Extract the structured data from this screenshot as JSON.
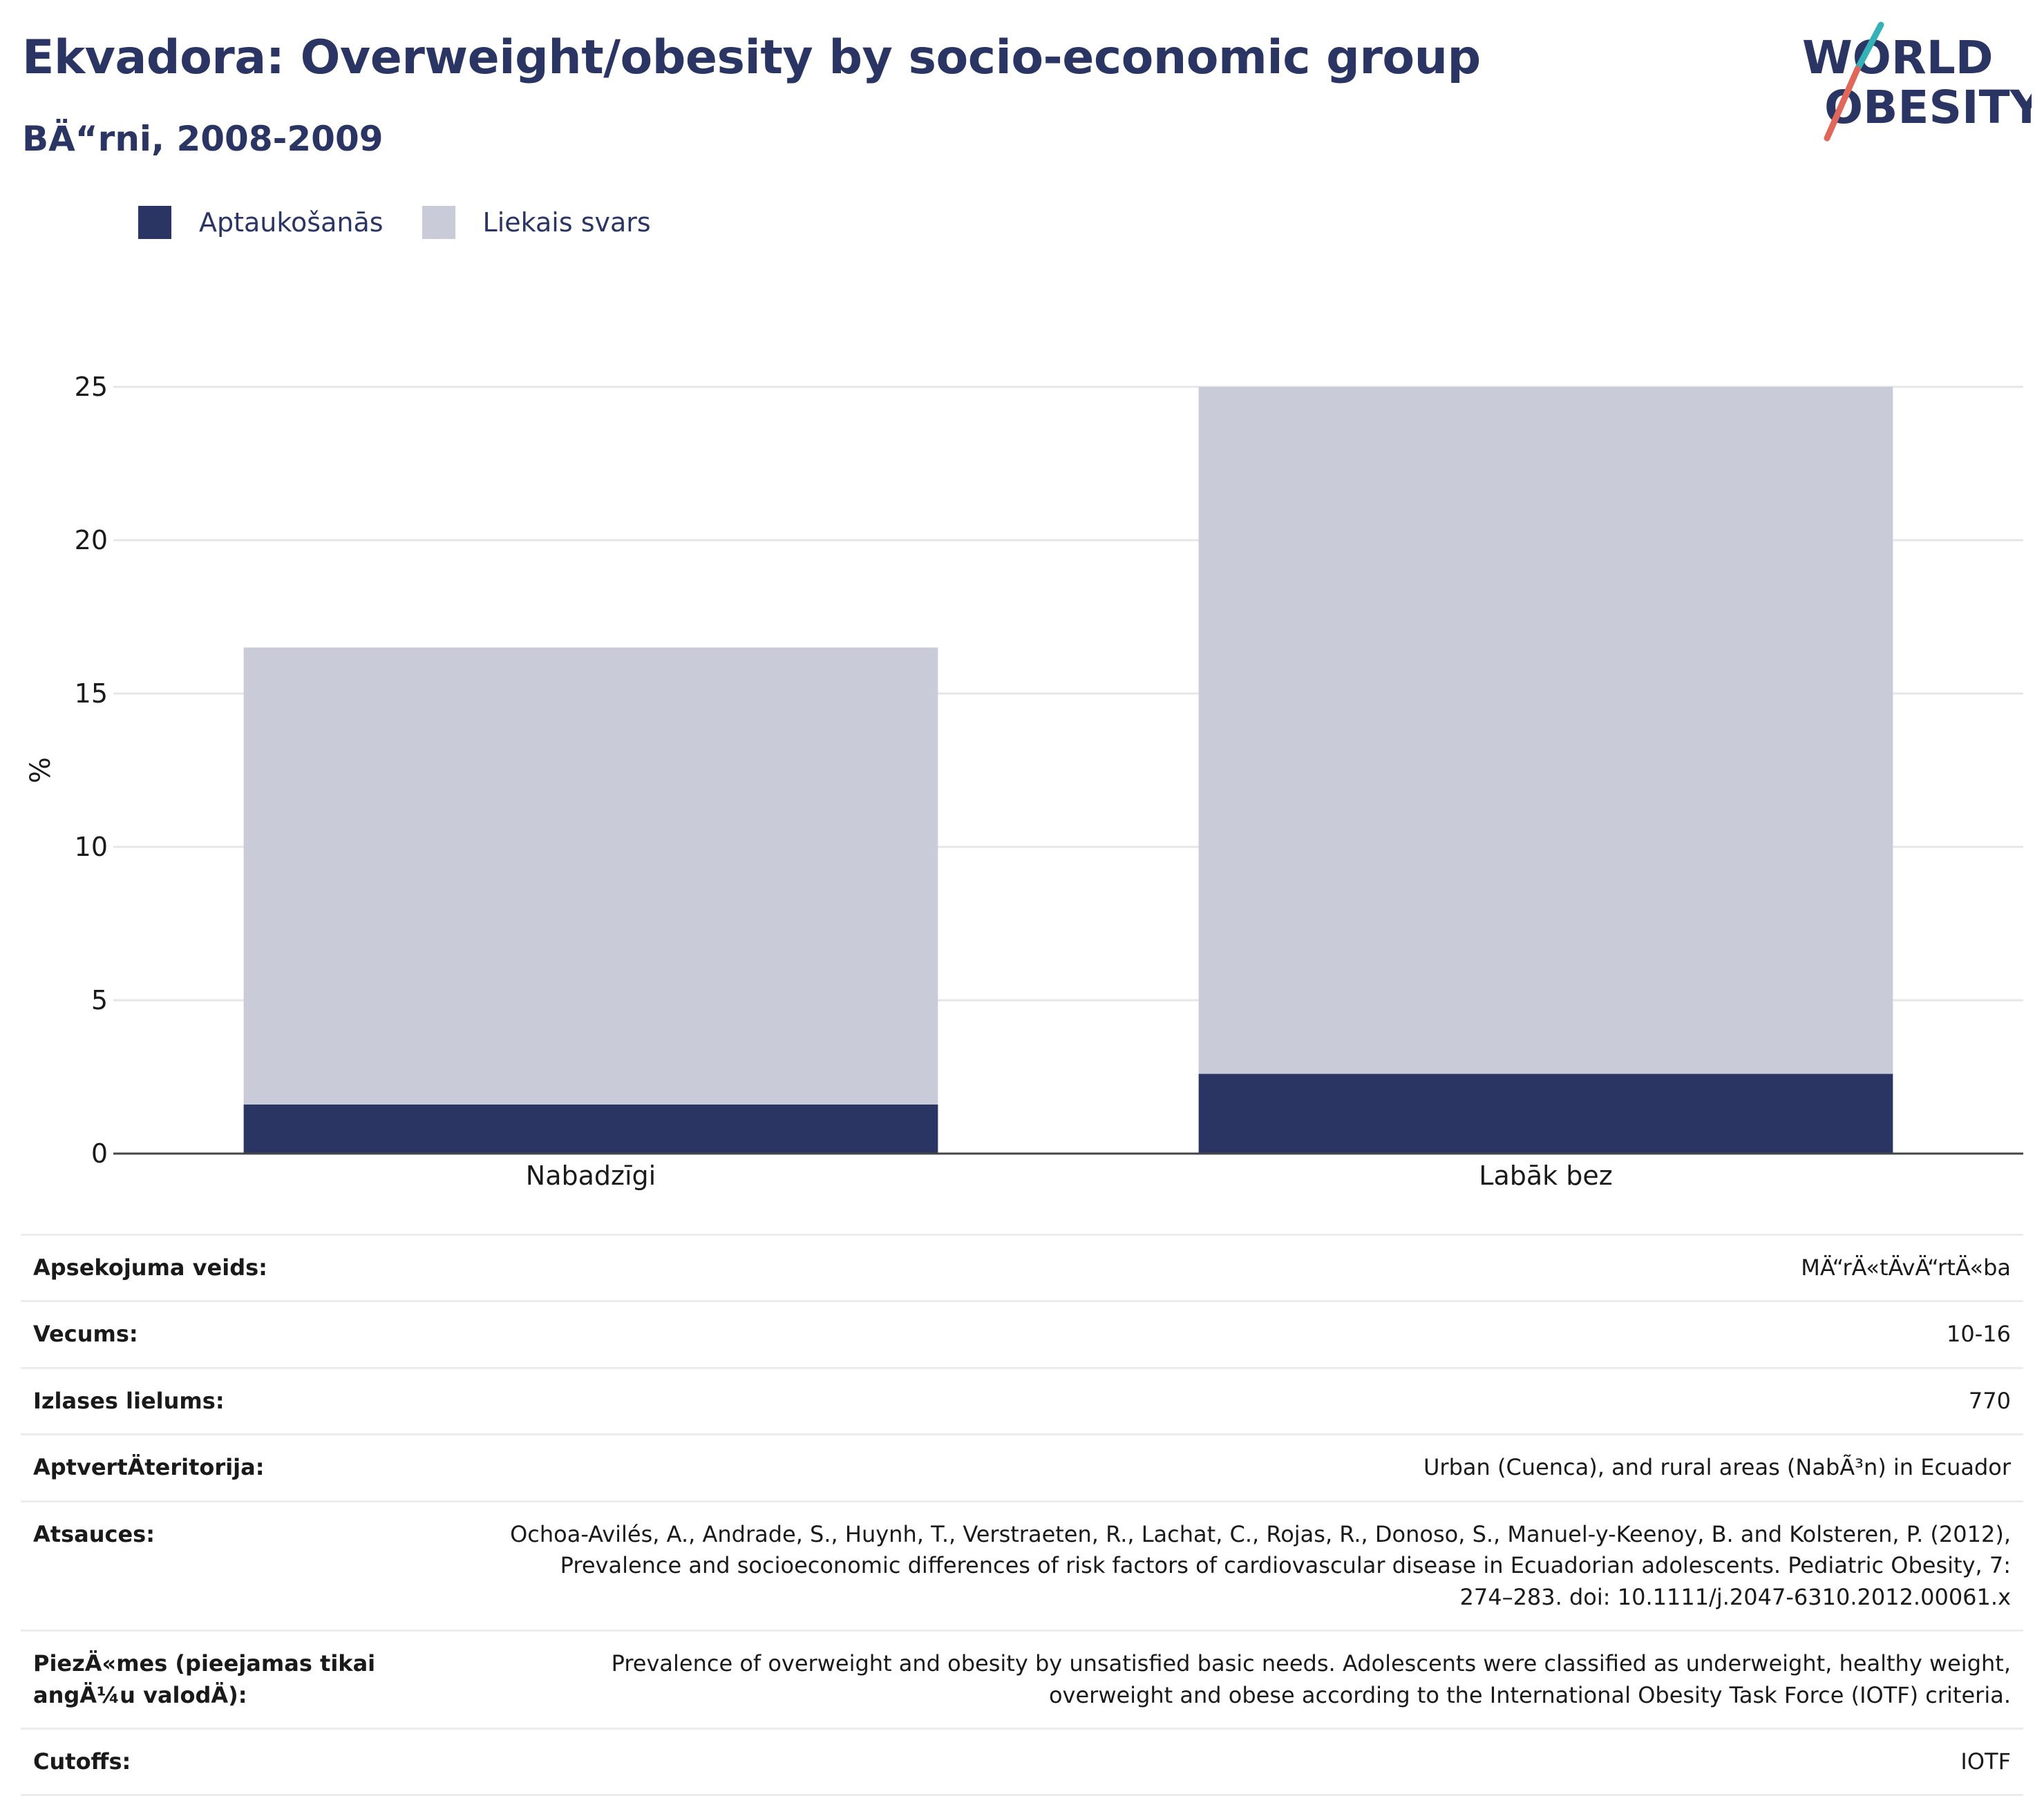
{
  "header": {
    "title": "Ekvadora: Overweight/obesity by socio-economic group",
    "subtitle": "BÄ“rni, 2008-2009"
  },
  "logo": {
    "line1": "WORLD",
    "line2": "OBESITY",
    "colors": {
      "text": "#2a3564",
      "slash_teal": "#35b2b7",
      "slash_red": "#e0685b"
    }
  },
  "legend": [
    {
      "label": "Aptaukošanās",
      "color": "#2a3564"
    },
    {
      "label": "Liekais svars",
      "color": "#c9ccd8"
    }
  ],
  "chart_data": {
    "type": "bar",
    "stacked": true,
    "categories": [
      "Nabadzīgi",
      "Labāk bez"
    ],
    "series": [
      {
        "name": "Aptaukošanās",
        "values": [
          1.6,
          2.6
        ],
        "color": "#2a3564"
      },
      {
        "name": "Liekais svars",
        "values": [
          14.9,
          22.4
        ],
        "color": "#c9ccd8"
      }
    ],
    "ylabel": "%",
    "ylim": [
      0,
      25
    ],
    "yticks": [
      0,
      5,
      10,
      15,
      20,
      25
    ],
    "grid": true,
    "legend_position": "top-left"
  },
  "meta": [
    {
      "key": "Apsekojuma veids:",
      "value": "MÄ“rÄ«tÄvÄ“rtÄ«ba"
    },
    {
      "key": "Vecums:",
      "value": "10-16"
    },
    {
      "key": "Izlases lielums:",
      "value": "770"
    },
    {
      "key": "AptvertÄteritorija:",
      "value": "Urban (Cuenca), and rural areas (NabÃ³n) in Ecuador"
    },
    {
      "key": "Atsauces:",
      "value": "Ochoa-Avilés, A., Andrade, S., Huynh, T., Verstraeten, R., Lachat, C., Rojas, R., Donoso, S., Manuel-y-Keenoy, B. and Kolsteren, P. (2012), Prevalence and socioeconomic differences of risk factors of cardiovascular disease in Ecuadorian adolescents. Pediatric Obesity, 7: 274–283. doi: 10.1111/j.2047-6310.2012.00061.x"
    },
    {
      "key": "PiezÄ«mes (pieejamas tikai angÄ¼u valodÄ):",
      "value": "Prevalence of overweight and obesity by unsatisfied basic needs. Adolescents were classified as underweight, healthy weight, overweight and obese according to the International Obesity Task Force (IOTF) criteria."
    },
    {
      "key": "Cutoffs:",
      "value": "IOTF"
    }
  ]
}
